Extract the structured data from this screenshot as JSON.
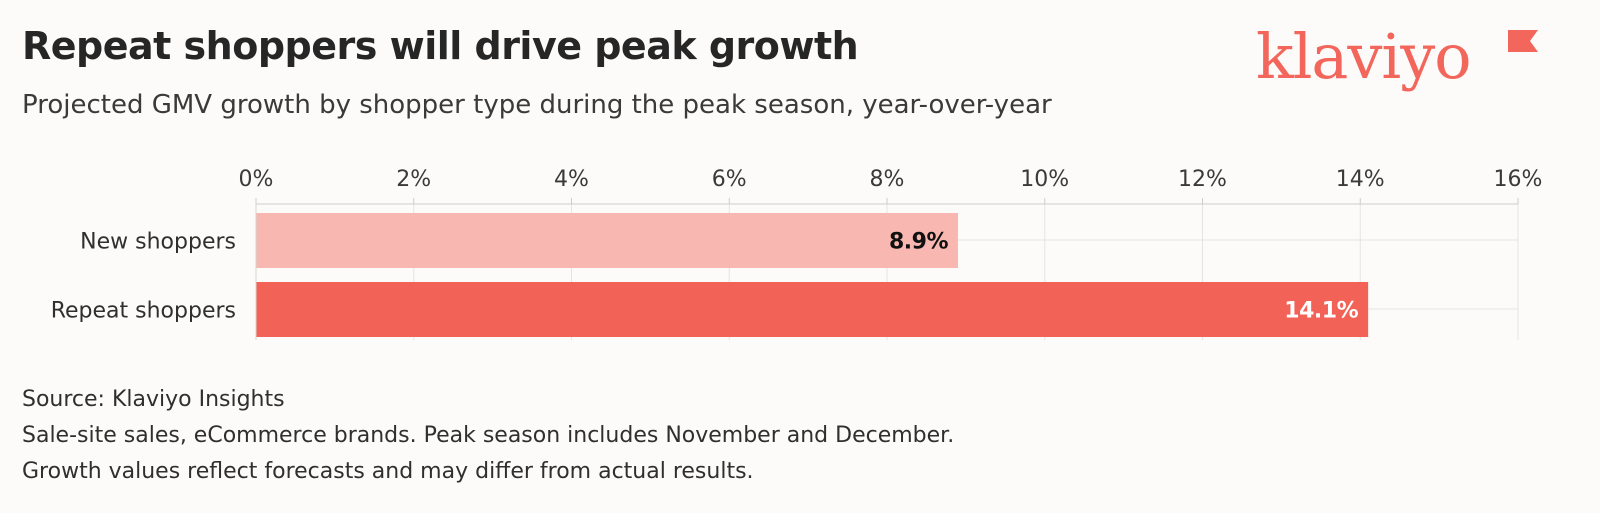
{
  "header": {
    "title": "Repeat shoppers will drive peak growth",
    "subtitle": "Projected GMV growth by shopper type during the peak season, year-over-year"
  },
  "brand": {
    "logo_text": "klaviyo",
    "color": "#f2665b"
  },
  "chart_data": {
    "type": "bar",
    "orientation": "horizontal",
    "categories": [
      "New shoppers",
      "Repeat shoppers"
    ],
    "values": [
      8.9,
      14.1
    ],
    "value_labels": [
      "8.9%",
      "14.1%"
    ],
    "bar_colors": [
      "#f9b7b1",
      "#f26257"
    ],
    "xlim": [
      0,
      16
    ],
    "x_ticks": [
      0,
      2,
      4,
      6,
      8,
      10,
      12,
      14,
      16
    ],
    "x_tick_labels": [
      "0%",
      "2%",
      "4%",
      "6%",
      "8%",
      "10%",
      "12%",
      "14%",
      "16%"
    ],
    "x_axis_position": "top",
    "grid": true
  },
  "footer": {
    "source": "Source: Klaviyo Insights",
    "note1": "Sale-site sales, eCommerce brands. Peak season includes November and December.",
    "note2": "Growth values reflect forecasts and may differ from actual results."
  }
}
